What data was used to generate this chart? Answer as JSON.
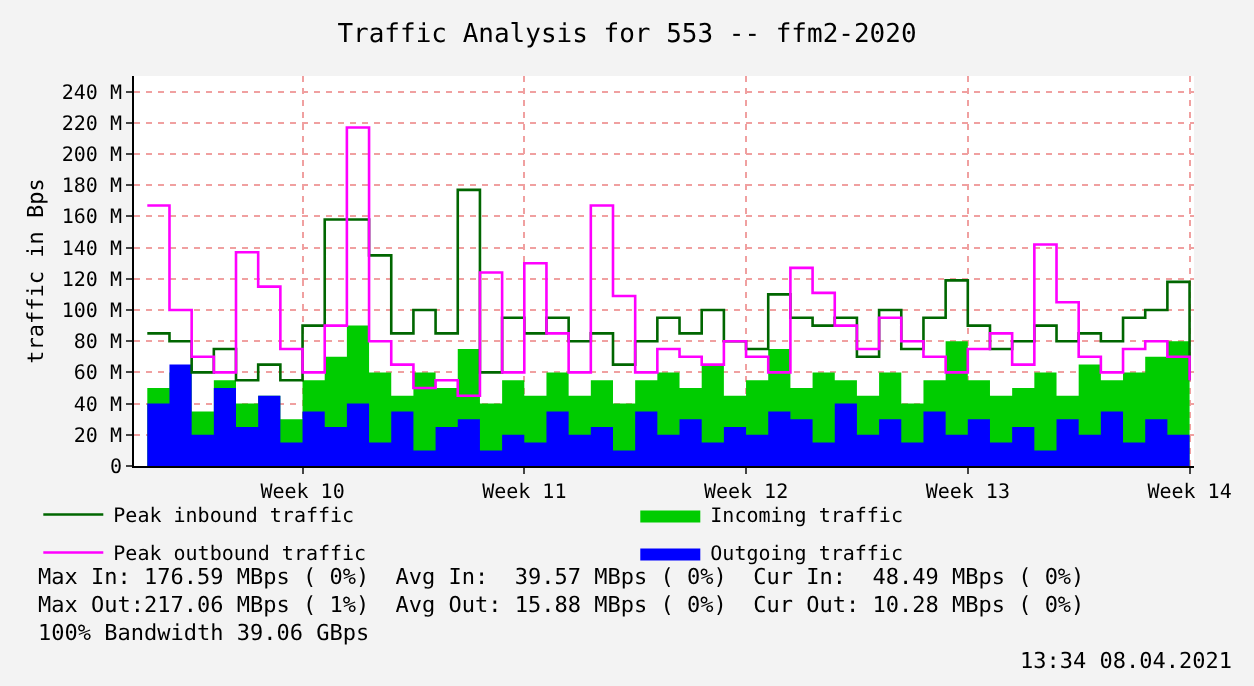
{
  "chart_data": {
    "type": "step",
    "title": "Traffic Analysis for 553 -- ffm2-2020",
    "ylabel": "traffic in Bps",
    "categories": [
      null,
      null,
      null,
      null,
      null,
      null,
      null,
      "Week 10",
      null,
      null,
      null,
      null,
      null,
      null,
      null,
      null,
      null,
      "Week 11",
      null,
      null,
      null,
      null,
      null,
      null,
      null,
      null,
      null,
      "Week 12",
      null,
      null,
      null,
      null,
      null,
      null,
      null,
      null,
      null,
      "Week 13",
      null,
      null,
      null,
      null,
      null,
      null,
      null,
      null,
      null,
      "Week 14"
    ],
    "series": [
      {
        "name": "Peak inbound traffic",
        "type": "step",
        "color": "#006600",
        "values": [
          85,
          80,
          60,
          75,
          55,
          65,
          55,
          90,
          158,
          158,
          135,
          85,
          100,
          85,
          177,
          60,
          95,
          85,
          95,
          80,
          85,
          65,
          80,
          95,
          85,
          100,
          80,
          75,
          110,
          95,
          90,
          95,
          70,
          100,
          75,
          95,
          119,
          90,
          75,
          80,
          90,
          80,
          85,
          80,
          95,
          100,
          118,
          55
        ]
      },
      {
        "name": "Incoming traffic",
        "type": "area",
        "color": "#00cc00",
        "values": [
          50,
          60,
          35,
          55,
          40,
          45,
          30,
          55,
          70,
          90,
          60,
          45,
          60,
          50,
          75,
          40,
          55,
          45,
          60,
          45,
          55,
          40,
          55,
          60,
          50,
          65,
          45,
          55,
          75,
          50,
          60,
          55,
          45,
          60,
          40,
          55,
          80,
          55,
          45,
          50,
          60,
          45,
          65,
          55,
          60,
          70,
          80,
          35
        ]
      },
      {
        "name": "Peak outbound traffic",
        "type": "step",
        "color": "#ff00ff",
        "values": [
          167,
          100,
          70,
          60,
          137,
          115,
          75,
          60,
          90,
          217,
          80,
          65,
          50,
          55,
          45,
          124,
          60,
          130,
          85,
          60,
          167,
          109,
          60,
          75,
          70,
          65,
          80,
          70,
          60,
          127,
          111,
          90,
          75,
          95,
          80,
          70,
          60,
          75,
          85,
          65,
          142,
          105,
          70,
          60,
          75,
          80,
          70,
          55
        ]
      },
      {
        "name": "Outgoing traffic",
        "type": "area",
        "color": "#0000ff",
        "values": [
          40,
          65,
          20,
          50,
          25,
          45,
          15,
          35,
          25,
          40,
          15,
          35,
          10,
          25,
          30,
          10,
          20,
          15,
          35,
          20,
          25,
          10,
          35,
          20,
          30,
          15,
          25,
          20,
          35,
          30,
          15,
          40,
          20,
          30,
          15,
          35,
          20,
          30,
          15,
          25,
          10,
          30,
          20,
          35,
          15,
          30,
          20,
          10
        ]
      }
    ],
    "ylim": [
      0,
      250
    ],
    "yticks": [
      0,
      {
        "value": 20,
        "label": "20 M"
      },
      {
        "value": 40,
        "label": "40 M"
      },
      {
        "value": 60,
        "label": "60 M"
      },
      {
        "value": 80,
        "label": "80 M"
      },
      {
        "value": 100,
        "label": "100 M"
      },
      {
        "value": 120,
        "label": "120 M"
      },
      {
        "value": 140,
        "label": "140 M"
      },
      {
        "value": 160,
        "label": "160 M"
      },
      {
        "value": 180,
        "label": "180 M"
      },
      {
        "value": 200,
        "label": "200 M"
      },
      {
        "value": 220,
        "label": "220 M"
      },
      {
        "value": 240,
        "label": "240 M"
      }
    ],
    "grid": true,
    "legend": "bottom",
    "annotations": [
      "Max In: 176.59 MBps ( 0%)  Avg In:  39.57 MBps ( 0%)  Cur In:  48.49 MBps ( 0%)",
      "Max Out:217.06 MBps ( 1%)  Avg Out: 15.88 MBps ( 0%)  Cur Out: 10.28 MBps ( 0%)",
      "100% Bandwidth 39.06 GBps",
      "13:34 08.04.2021"
    ]
  }
}
